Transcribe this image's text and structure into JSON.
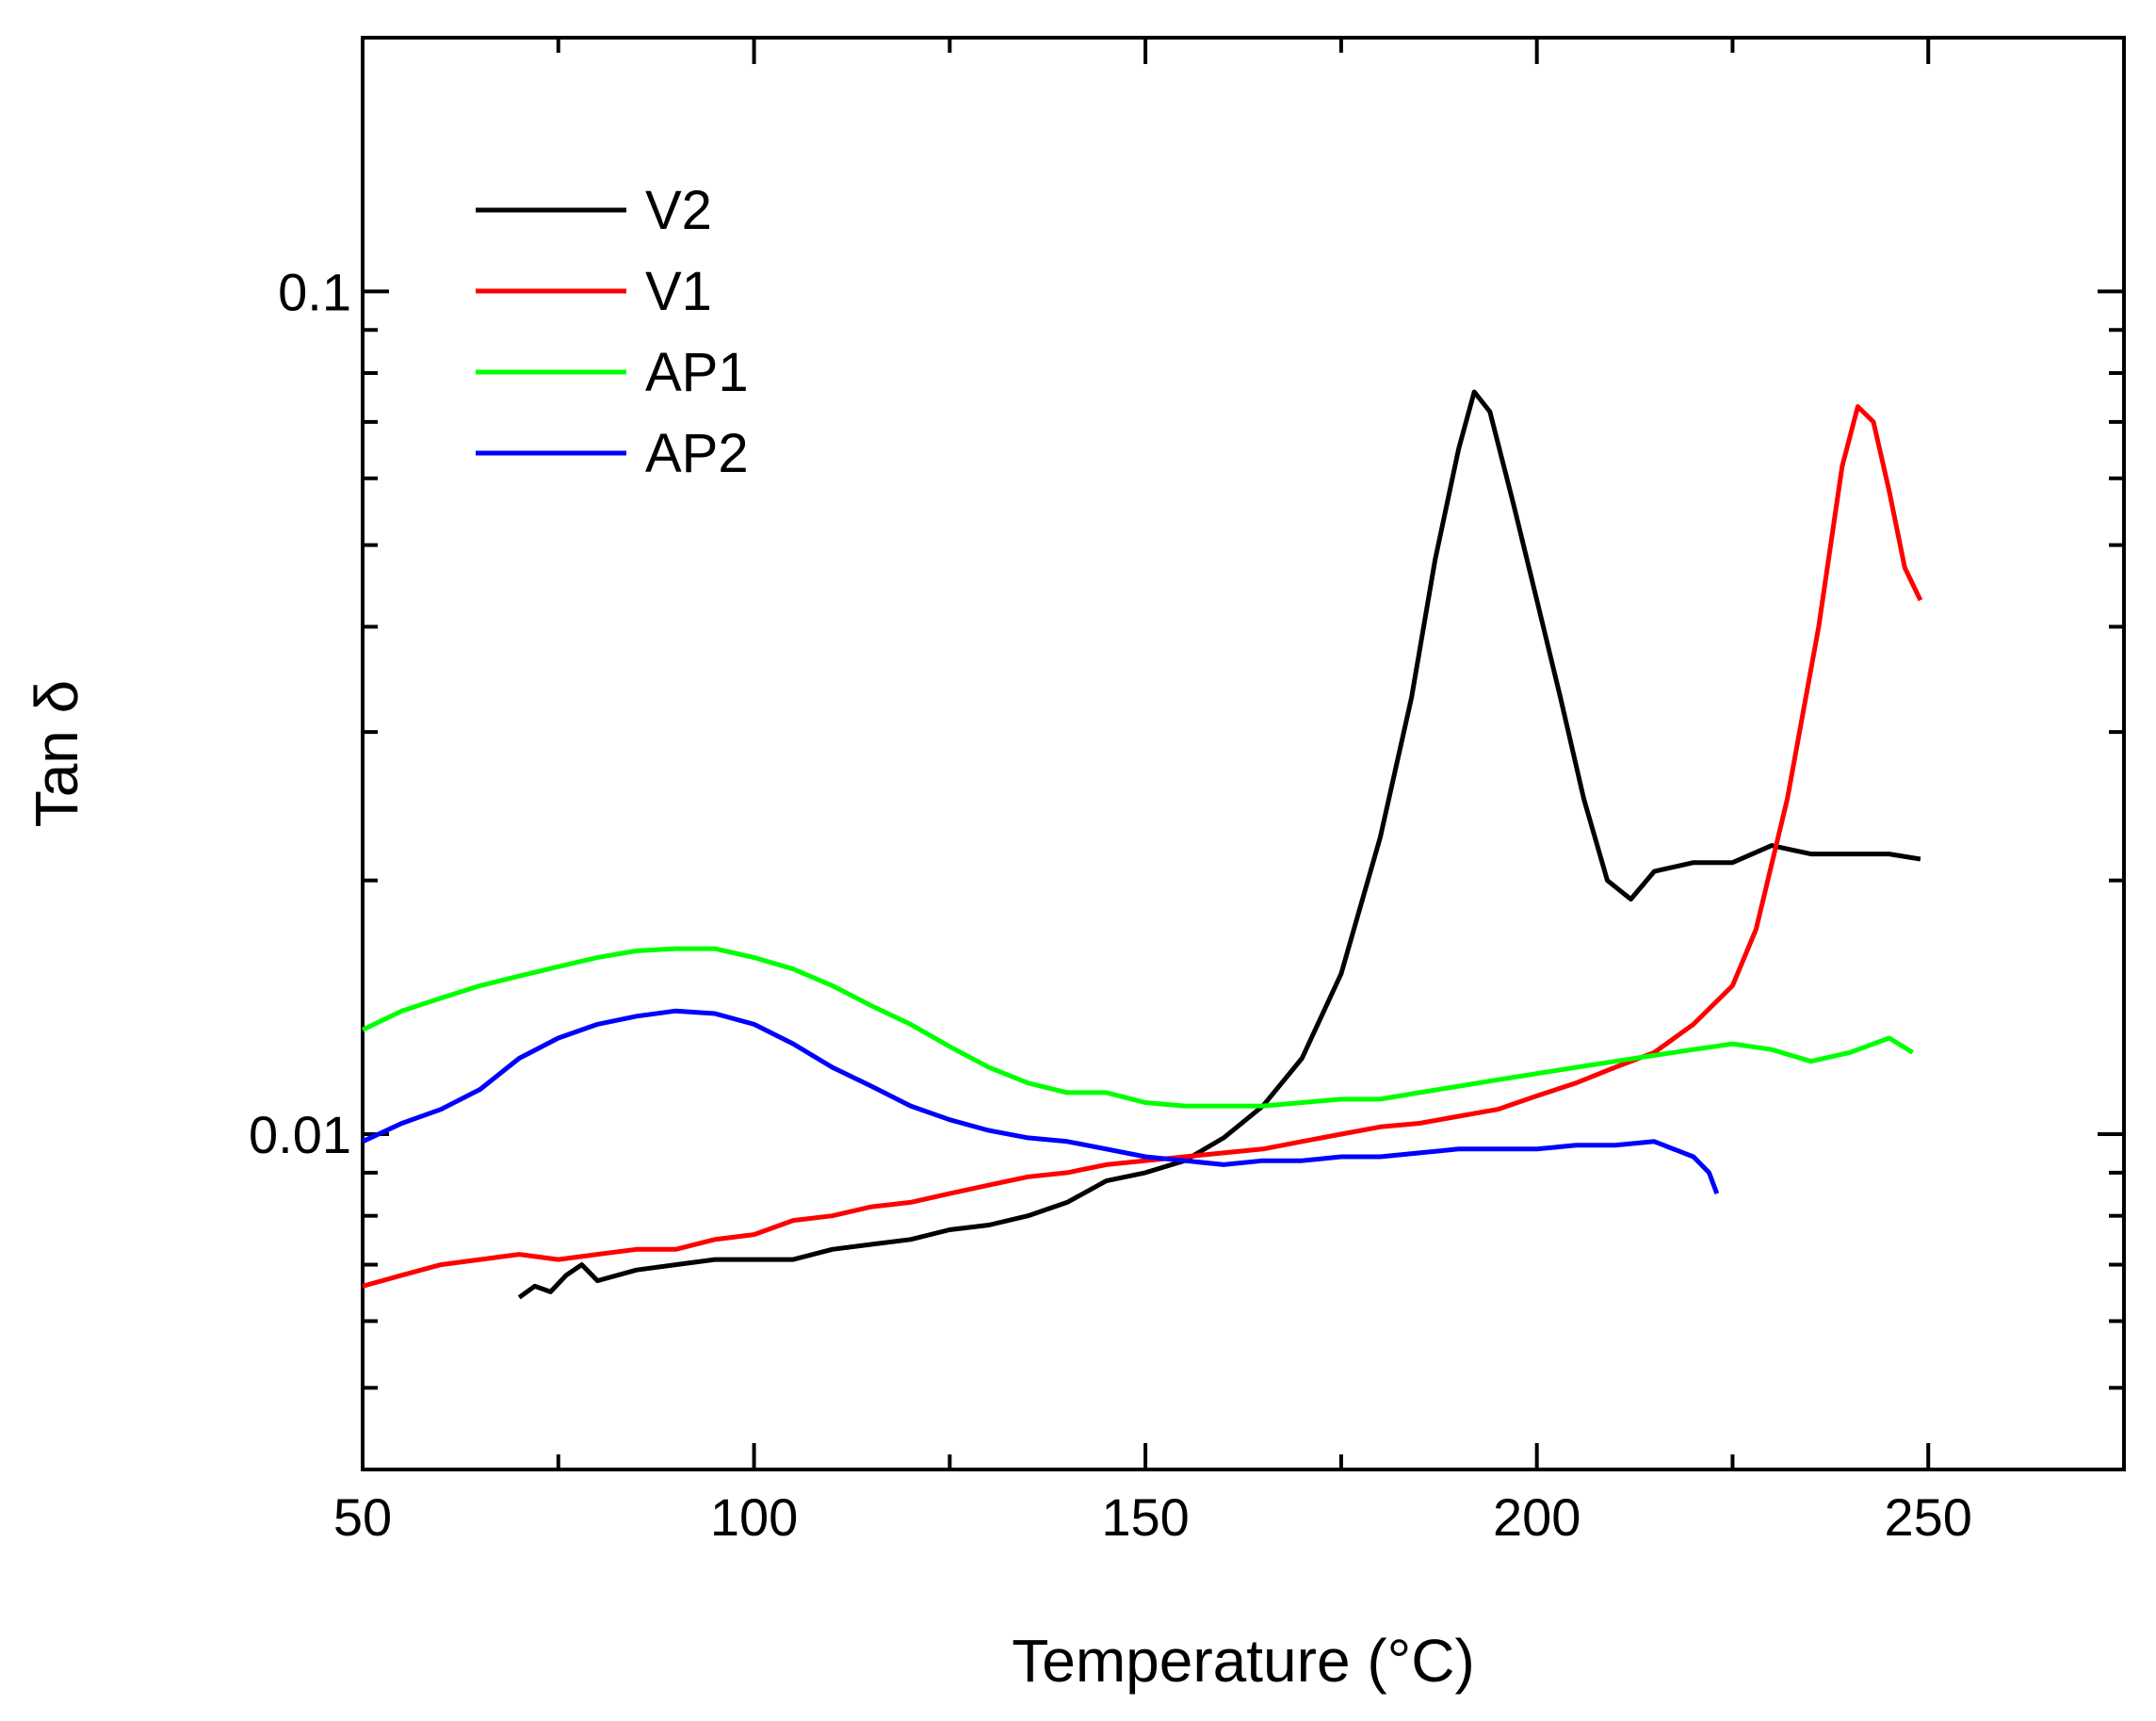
{
  "chart_data": {
    "type": "line",
    "title": "",
    "xlabel": "Temperature (°C)",
    "ylabel": "Tan δ",
    "xlim": [
      50,
      275
    ],
    "ylim": [
      0.004,
      0.2
    ],
    "yscale": "log",
    "xticks": [
      50,
      100,
      150,
      200,
      250
    ],
    "xtick_labels": [
      "50",
      "100",
      "150",
      "200",
      "250"
    ],
    "yticks": [
      0.01,
      0.1
    ],
    "ytick_labels": [
      "0.01",
      "0.1"
    ],
    "legend_position": "top-left",
    "series": [
      {
        "name": "V2",
        "color": "#000000",
        "points": [
          [
            70,
            0.0064
          ],
          [
            72,
            0.0066
          ],
          [
            74,
            0.0065
          ],
          [
            76,
            0.0068
          ],
          [
            78,
            0.007
          ],
          [
            80,
            0.0067
          ],
          [
            85,
            0.0069
          ],
          [
            90,
            0.007
          ],
          [
            95,
            0.0071
          ],
          [
            100,
            0.0071
          ],
          [
            105,
            0.0071
          ],
          [
            110,
            0.0073
          ],
          [
            115,
            0.0074
          ],
          [
            120,
            0.0075
          ],
          [
            125,
            0.0077
          ],
          [
            130,
            0.0078
          ],
          [
            135,
            0.008
          ],
          [
            140,
            0.0083
          ],
          [
            145,
            0.0088
          ],
          [
            150,
            0.009
          ],
          [
            155,
            0.0093
          ],
          [
            160,
            0.0099
          ],
          [
            165,
            0.0108
          ],
          [
            170,
            0.0123
          ],
          [
            175,
            0.0155
          ],
          [
            180,
            0.0225
          ],
          [
            184,
            0.033
          ],
          [
            187,
            0.048
          ],
          [
            190,
            0.065
          ],
          [
            192,
            0.076
          ],
          [
            194,
            0.072
          ],
          [
            197,
            0.056
          ],
          [
            200,
            0.043
          ],
          [
            203,
            0.033
          ],
          [
            206,
            0.025
          ],
          [
            209,
            0.02
          ],
          [
            212,
            0.019
          ],
          [
            215,
            0.0205
          ],
          [
            220,
            0.021
          ],
          [
            225,
            0.021
          ],
          [
            230,
            0.022
          ],
          [
            235,
            0.0215
          ],
          [
            240,
            0.0215
          ],
          [
            245,
            0.0215
          ],
          [
            249,
            0.0212
          ]
        ]
      },
      {
        "name": "V1",
        "color": "#ff0000",
        "points": [
          [
            50,
            0.0066
          ],
          [
            55,
            0.0068
          ],
          [
            60,
            0.007
          ],
          [
            65,
            0.0071
          ],
          [
            70,
            0.0072
          ],
          [
            75,
            0.0071
          ],
          [
            80,
            0.0072
          ],
          [
            85,
            0.0073
          ],
          [
            90,
            0.0073
          ],
          [
            95,
            0.0075
          ],
          [
            100,
            0.0076
          ],
          [
            105,
            0.0079
          ],
          [
            110,
            0.008
          ],
          [
            115,
            0.0082
          ],
          [
            120,
            0.0083
          ],
          [
            125,
            0.0085
          ],
          [
            130,
            0.0087
          ],
          [
            135,
            0.0089
          ],
          [
            140,
            0.009
          ],
          [
            145,
            0.0092
          ],
          [
            150,
            0.0093
          ],
          [
            155,
            0.0094
          ],
          [
            160,
            0.0095
          ],
          [
            165,
            0.0096
          ],
          [
            170,
            0.0098
          ],
          [
            175,
            0.01
          ],
          [
            180,
            0.0102
          ],
          [
            185,
            0.0103
          ],
          [
            190,
            0.0105
          ],
          [
            195,
            0.0107
          ],
          [
            200,
            0.0111
          ],
          [
            205,
            0.0115
          ],
          [
            210,
            0.012
          ],
          [
            215,
            0.0125
          ],
          [
            220,
            0.0135
          ],
          [
            225,
            0.015
          ],
          [
            228,
            0.0175
          ],
          [
            232,
            0.025
          ],
          [
            236,
            0.04
          ],
          [
            239,
            0.062
          ],
          [
            241,
            0.073
          ],
          [
            243,
            0.07
          ],
          [
            245,
            0.058
          ],
          [
            247,
            0.047
          ],
          [
            249,
            0.043
          ]
        ]
      },
      {
        "name": "AP1",
        "color": "#00ff00",
        "points": [
          [
            50,
            0.0133
          ],
          [
            55,
            0.014
          ],
          [
            60,
            0.0145
          ],
          [
            65,
            0.015
          ],
          [
            70,
            0.0154
          ],
          [
            75,
            0.0158
          ],
          [
            80,
            0.0162
          ],
          [
            85,
            0.0165
          ],
          [
            90,
            0.0166
          ],
          [
            95,
            0.0166
          ],
          [
            100,
            0.0162
          ],
          [
            105,
            0.0157
          ],
          [
            110,
            0.015
          ],
          [
            115,
            0.0142
          ],
          [
            120,
            0.0135
          ],
          [
            125,
            0.0127
          ],
          [
            130,
            0.012
          ],
          [
            135,
            0.0115
          ],
          [
            140,
            0.0112
          ],
          [
            145,
            0.0112
          ],
          [
            150,
            0.0109
          ],
          [
            155,
            0.0108
          ],
          [
            160,
            0.0108
          ],
          [
            165,
            0.0108
          ],
          [
            170,
            0.0109
          ],
          [
            175,
            0.011
          ],
          [
            180,
            0.011
          ],
          [
            185,
            0.0112
          ],
          [
            190,
            0.0114
          ],
          [
            195,
            0.0116
          ],
          [
            200,
            0.0118
          ],
          [
            205,
            0.012
          ],
          [
            210,
            0.0122
          ],
          [
            215,
            0.0124
          ],
          [
            220,
            0.0126
          ],
          [
            225,
            0.0128
          ],
          [
            230,
            0.0126
          ],
          [
            235,
            0.0122
          ],
          [
            240,
            0.0125
          ],
          [
            245,
            0.013
          ],
          [
            248,
            0.0125
          ]
        ]
      },
      {
        "name": "AP2",
        "color": "#0000ff",
        "points": [
          [
            50,
            0.0098
          ],
          [
            55,
            0.0103
          ],
          [
            60,
            0.0107
          ],
          [
            65,
            0.0113
          ],
          [
            70,
            0.0123
          ],
          [
            75,
            0.013
          ],
          [
            80,
            0.0135
          ],
          [
            85,
            0.0138
          ],
          [
            90,
            0.014
          ],
          [
            95,
            0.0139
          ],
          [
            100,
            0.0135
          ],
          [
            105,
            0.0128
          ],
          [
            110,
            0.012
          ],
          [
            115,
            0.0114
          ],
          [
            120,
            0.0108
          ],
          [
            125,
            0.0104
          ],
          [
            130,
            0.0101
          ],
          [
            135,
            0.0099
          ],
          [
            140,
            0.0098
          ],
          [
            145,
            0.0096
          ],
          [
            150,
            0.0094
          ],
          [
            155,
            0.0093
          ],
          [
            160,
            0.0092
          ],
          [
            165,
            0.0093
          ],
          [
            170,
            0.0093
          ],
          [
            175,
            0.0094
          ],
          [
            180,
            0.0094
          ],
          [
            185,
            0.0095
          ],
          [
            190,
            0.0096
          ],
          [
            195,
            0.0096
          ],
          [
            200,
            0.0096
          ],
          [
            205,
            0.0097
          ],
          [
            210,
            0.0097
          ],
          [
            215,
            0.0098
          ],
          [
            220,
            0.0094
          ],
          [
            222,
            0.009
          ],
          [
            223,
            0.0085
          ]
        ]
      }
    ]
  }
}
